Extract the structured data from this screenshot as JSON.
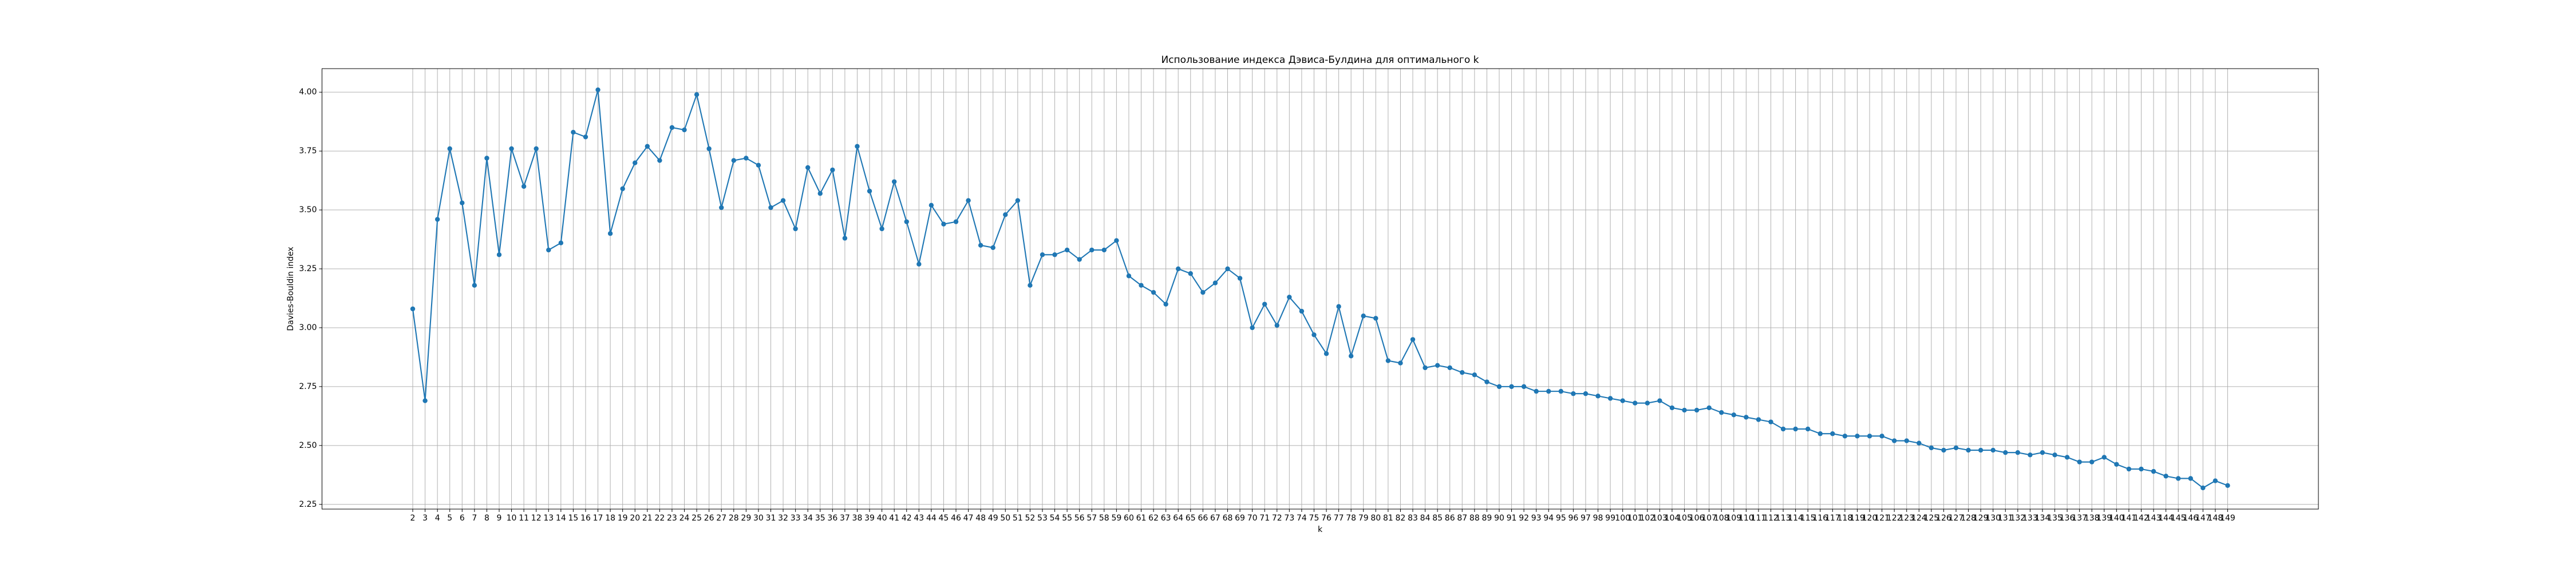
{
  "chart_data": {
    "type": "line",
    "title": "Использование индекса Дэвиса-Булдина для оптимального k",
    "xlabel": "k",
    "ylabel": "Davies-Bouldin index",
    "x": [
      2,
      3,
      4,
      5,
      6,
      7,
      8,
      9,
      10,
      11,
      12,
      13,
      14,
      15,
      16,
      17,
      18,
      19,
      20,
      21,
      22,
      23,
      24,
      25,
      26,
      27,
      28,
      29,
      30,
      31,
      32,
      33,
      34,
      35,
      36,
      37,
      38,
      39,
      40,
      41,
      42,
      43,
      44,
      45,
      46,
      47,
      48,
      49,
      50,
      51,
      52,
      53,
      54,
      55,
      56,
      57,
      58,
      59,
      60,
      61,
      62,
      63,
      64,
      65,
      66,
      67,
      68,
      69,
      70,
      71,
      72,
      73,
      74,
      75,
      76,
      77,
      78,
      79,
      80,
      81,
      82,
      83,
      84,
      85,
      86,
      87,
      88,
      89,
      90,
      91,
      92,
      93,
      94,
      95,
      96,
      97,
      98,
      99,
      100,
      101,
      102,
      103,
      104,
      105,
      106,
      107,
      108,
      109,
      110,
      111,
      112,
      113,
      114,
      115,
      116,
      117,
      118,
      119,
      120,
      121,
      122,
      123,
      124,
      125,
      126,
      127,
      128,
      129,
      130,
      131,
      132,
      133,
      134,
      135,
      136,
      137,
      138,
      139,
      140,
      141,
      142,
      143,
      144,
      145,
      146,
      147,
      148,
      149
    ],
    "series": [
      {
        "color": "#1f77b4",
        "values": [
          3.08,
          2.69,
          3.46,
          3.76,
          3.53,
          3.18,
          3.72,
          3.31,
          3.76,
          3.6,
          3.76,
          3.33,
          3.36,
          3.83,
          3.81,
          4.01,
          3.4,
          3.59,
          3.7,
          3.77,
          3.71,
          3.85,
          3.84,
          3.99,
          3.76,
          3.51,
          3.71,
          3.72,
          3.69,
          3.51,
          3.54,
          3.42,
          3.68,
          3.57,
          3.67,
          3.38,
          3.77,
          3.58,
          3.42,
          3.62,
          3.45,
          3.27,
          3.52,
          3.44,
          3.45,
          3.54,
          3.35,
          3.34,
          3.48,
          3.54,
          3.18,
          3.31,
          3.31,
          3.33,
          3.29,
          3.33,
          3.33,
          3.37,
          3.22,
          3.18,
          3.15,
          3.1,
          3.25,
          3.23,
          3.15,
          3.19,
          3.25,
          3.21,
          3.0,
          3.1,
          3.01,
          3.13,
          3.07,
          2.97,
          2.89,
          3.09,
          2.88,
          3.05,
          3.04,
          2.86,
          2.85,
          2.95,
          2.83,
          2.84,
          2.83,
          2.81,
          2.8,
          2.77,
          2.75,
          2.75,
          2.75,
          2.73,
          2.73,
          2.73,
          2.72,
          2.72,
          2.71,
          2.7,
          2.69,
          2.68,
          2.68,
          2.69,
          2.66,
          2.65,
          2.65,
          2.66,
          2.64,
          2.63,
          2.62,
          2.61,
          2.6,
          2.57,
          2.57,
          2.57,
          2.55,
          2.55,
          2.54,
          2.54,
          2.54,
          2.54,
          2.52,
          2.52,
          2.51,
          2.49,
          2.48,
          2.49,
          2.48,
          2.48,
          2.48,
          2.47,
          2.47,
          2.46,
          2.47,
          2.46,
          2.45,
          2.43,
          2.43,
          2.45,
          2.42,
          2.4,
          2.4,
          2.39,
          2.37,
          2.36,
          2.36,
          2.32,
          2.35,
          2.33
        ]
      }
    ],
    "xlim": [
      -5.35,
      156.35
    ],
    "ylim": [
      2.23,
      4.1
    ],
    "xticks": [
      2,
      3,
      4,
      5,
      6,
      7,
      8,
      9,
      10,
      11,
      12,
      13,
      14,
      15,
      16,
      17,
      18,
      19,
      20,
      21,
      22,
      23,
      24,
      25,
      26,
      27,
      28,
      29,
      30,
      31,
      32,
      33,
      34,
      35,
      36,
      37,
      38,
      39,
      40,
      41,
      42,
      43,
      44,
      45,
      46,
      47,
      48,
      49,
      50,
      51,
      52,
      53,
      54,
      55,
      56,
      57,
      58,
      59,
      60,
      61,
      62,
      63,
      64,
      65,
      66,
      67,
      68,
      69,
      70,
      71,
      72,
      73,
      74,
      75,
      76,
      77,
      78,
      79,
      80,
      81,
      82,
      83,
      84,
      85,
      86,
      87,
      88,
      89,
      90,
      91,
      92,
      93,
      94,
      95,
      96,
      97,
      98,
      99,
      100,
      101,
      102,
      103,
      104,
      105,
      106,
      107,
      108,
      109,
      110,
      111,
      112,
      113,
      114,
      115,
      116,
      117,
      118,
      119,
      120,
      121,
      122,
      123,
      124,
      125,
      126,
      127,
      128,
      129,
      130,
      131,
      132,
      133,
      134,
      135,
      136,
      137,
      138,
      139,
      140,
      141,
      142,
      143,
      144,
      145,
      146,
      147,
      148,
      149
    ],
    "yticks": [
      2.25,
      {
        "value": 2.5,
        "label": "2.50"
      },
      2.75,
      {
        "value": 3.0,
        "label": "3.00"
      },
      3.25,
      {
        "value": 3.5,
        "label": "3.50"
      },
      3.75,
      {
        "value": 4.0,
        "label": "4.00"
      }
    ],
    "grid": true
  }
}
